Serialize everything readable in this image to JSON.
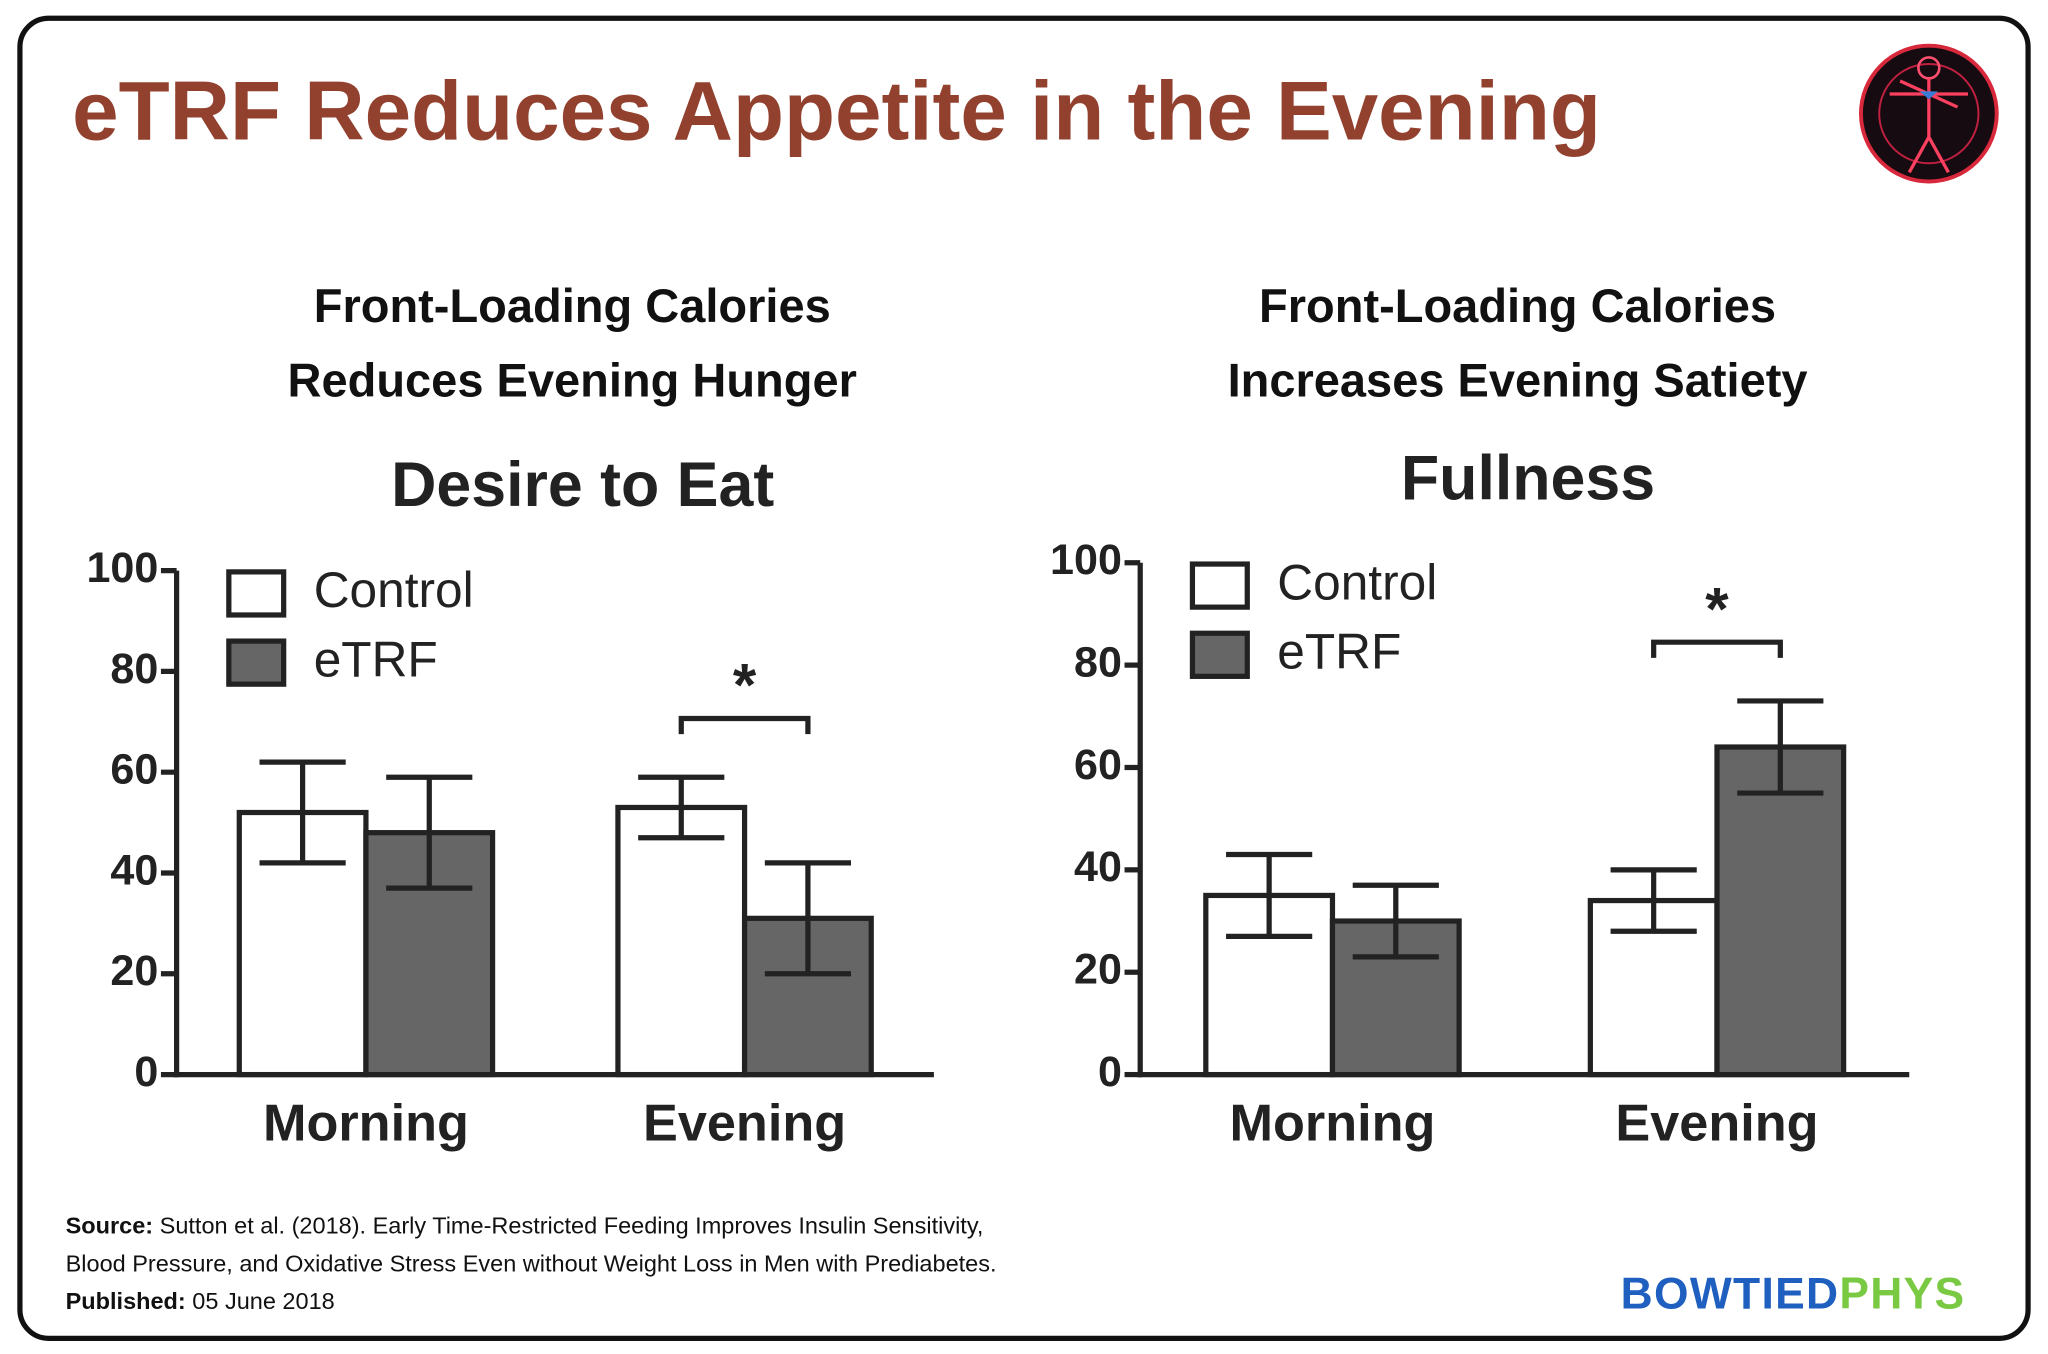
{
  "header": {
    "title": "eTRF Reduces Appetite in the Evening"
  },
  "chart_data": [
    {
      "type": "bar",
      "subtitle": [
        "Front-Loading Calories",
        "Reduces Evening Hunger"
      ],
      "title": "Desire to Eat",
      "categories": [
        "Morning",
        "Evening"
      ],
      "series": [
        {
          "name": "Control",
          "color": "#ffffff",
          "values": [
            52,
            53
          ],
          "errors": [
            10,
            6
          ]
        },
        {
          "name": "eTRF",
          "color": "#666666",
          "values": [
            48,
            31
          ],
          "errors": [
            11,
            11
          ]
        }
      ],
      "ylim": [
        0,
        100
      ],
      "yticks": [
        0,
        20,
        40,
        60,
        80,
        100
      ],
      "legend": "top-left",
      "significance": {
        "label": "*",
        "category": "Evening"
      }
    },
    {
      "type": "bar",
      "subtitle": [
        "Front-Loading Calories",
        "Increases Evening Satiety"
      ],
      "title": "Fullness",
      "categories": [
        "Morning",
        "Evening"
      ],
      "series": [
        {
          "name": "Control",
          "color": "#ffffff",
          "values": [
            35,
            34
          ],
          "errors": [
            8,
            6
          ]
        },
        {
          "name": "eTRF",
          "color": "#666666",
          "values": [
            30,
            64
          ],
          "errors": [
            7,
            9
          ]
        }
      ],
      "ylim": [
        0,
        100
      ],
      "yticks": [
        0,
        20,
        40,
        60,
        80,
        100
      ],
      "legend": "top-left",
      "significance": {
        "label": "*",
        "category": "Evening"
      }
    }
  ],
  "footer": {
    "source_label": "Source:",
    "source_lines": [
      "Sutton et al. (2018). Early Time-Restricted Feeding Improves Insulin Sensitivity,",
      "Blood Pressure, and Oxidative Stress Even without Weight Loss in Men with Prediabetes."
    ],
    "published_label": "Published:",
    "published": "05 June 2018",
    "brand": [
      "BOWTIED",
      "PHYS"
    ]
  }
}
